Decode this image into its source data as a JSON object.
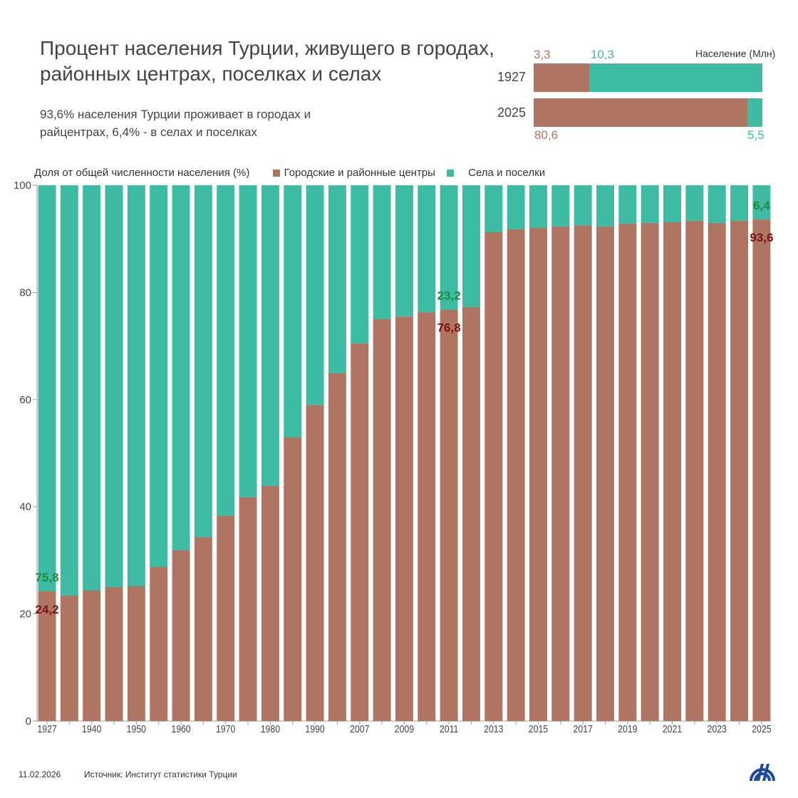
{
  "title": "Процент населения Турции, живущего в городах, районных центрах, поселках и селах",
  "subtitle": "93,6% населения Турции проживает в городах и райцентрах, 6,4% - в селах и поселках",
  "colors": {
    "urban": "#b07562",
    "rural": "#3dbba3",
    "urban_label": "#7a1414",
    "rural_label": "#1e8a3a"
  },
  "mini_chart": {
    "unit_label": "Население (Млн)",
    "rows": [
      {
        "year": "1927",
        "urban": 3.3,
        "rural": 10.3,
        "urban_label": "3,3",
        "rural_label": "10,3"
      },
      {
        "year": "2025",
        "urban": 80.6,
        "rural": 5.5,
        "urban_label": "80,6",
        "rural_label": "5,5"
      }
    ]
  },
  "chart_data": {
    "type": "bar",
    "stacked": true,
    "ylabel": "Доля от общей численности населения (%)",
    "ylim": [
      0,
      100
    ],
    "yticks": [
      "0",
      "20",
      "40",
      "60",
      "80",
      "100"
    ],
    "legend_placement": "top",
    "categories": [
      "1927",
      "1935",
      "1940",
      "1945",
      "1950",
      "1955",
      "1960",
      "1965",
      "1970",
      "1975",
      "1980",
      "1985",
      "1990",
      "2000",
      "2007",
      "2008",
      "2009",
      "2010",
      "2011",
      "2012",
      "2013",
      "2014",
      "2015",
      "2016",
      "2017",
      "2018",
      "2019",
      "2020",
      "2021",
      "2022",
      "2023",
      "2024",
      "2025"
    ],
    "tick_labels": [
      "1927",
      "1940",
      "1950",
      "1960",
      "1970",
      "1980",
      "1990",
      "2007",
      "2009",
      "2011",
      "2013",
      "2015",
      "2017",
      "2019",
      "2021",
      "2023",
      "2025"
    ],
    "series": [
      {
        "name": "Городские и районные центры",
        "values": [
          24.2,
          23.5,
          24.4,
          25.0,
          25.2,
          28.8,
          31.9,
          34.4,
          38.4,
          41.8,
          43.9,
          53.0,
          59.0,
          64.9,
          70.5,
          75.0,
          75.5,
          76.3,
          76.8,
          77.3,
          91.3,
          91.8,
          92.1,
          92.3,
          92.5,
          92.3,
          92.8,
          93.0,
          93.2,
          93.4,
          93.0,
          93.4,
          93.6
        ]
      },
      {
        "name": "Села и поселки",
        "values": [
          75.8,
          76.5,
          75.6,
          75.0,
          74.8,
          71.2,
          68.1,
          65.6,
          61.6,
          58.2,
          56.1,
          47.0,
          41.0,
          35.1,
          29.5,
          25.0,
          24.5,
          23.7,
          23.2,
          22.7,
          8.7,
          8.2,
          7.9,
          7.7,
          7.5,
          7.7,
          7.2,
          7.0,
          6.8,
          6.6,
          7.0,
          6.6,
          6.4
        ]
      }
    ],
    "annotations": [
      {
        "category": "1927",
        "urban": "24,2",
        "rural": "75,8"
      },
      {
        "category": "2011",
        "urban": "76,8",
        "rural": "23,2"
      },
      {
        "category": "2025",
        "urban": "93,6",
        "rural": "6,4"
      }
    ]
  },
  "footer": {
    "date": "11.02.2026",
    "source": "Источник: Институт статистики Турции",
    "logo": "AA"
  }
}
